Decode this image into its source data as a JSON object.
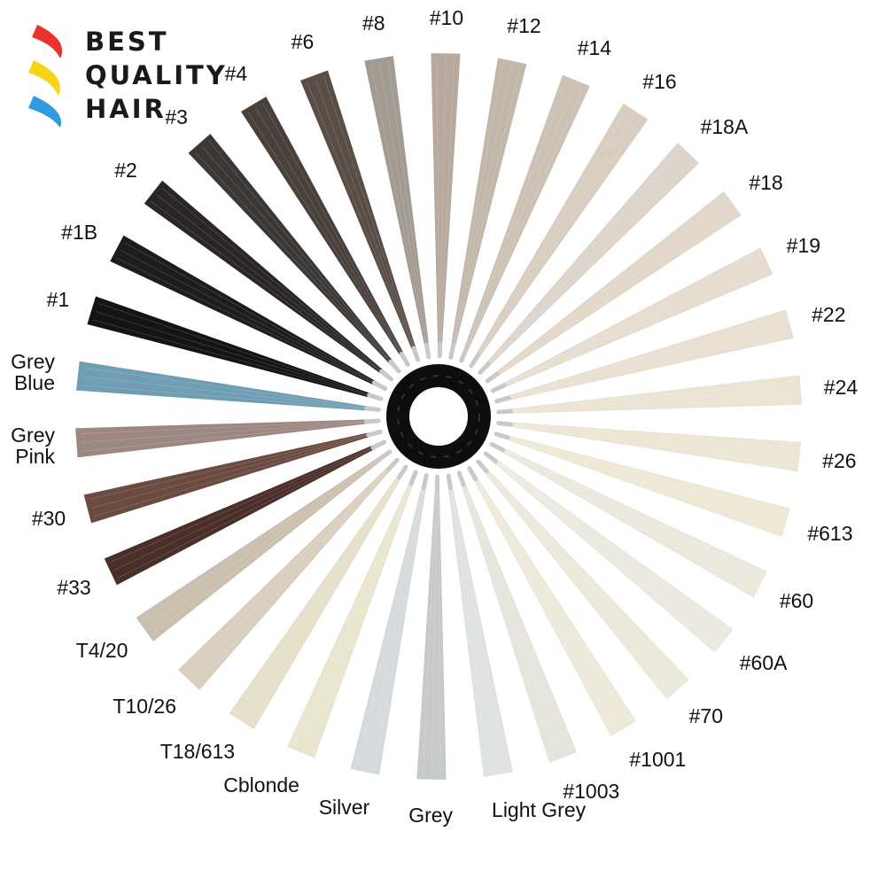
{
  "brand": {
    "line1": "BEST",
    "line2": "QUALITY",
    "line3": "HAIR",
    "stripe_colors": [
      "#e8322b",
      "#f7d417",
      "#2f9be0"
    ]
  },
  "ring": {
    "color": "#0d0d0d",
    "clip_color": "#c9c9c9"
  },
  "swatches": [
    {
      "label": "#1",
      "color": "#141414"
    },
    {
      "label": "#1B",
      "color": "#1d1d1f"
    },
    {
      "label": "#2",
      "color": "#2a2626"
    },
    {
      "label": "#3",
      "color": "#3b3735"
    },
    {
      "label": "#4",
      "color": "#4a403b"
    },
    {
      "label": "#6",
      "color": "#5a4d45"
    },
    {
      "label": "#8",
      "color": "#a39a92"
    },
    {
      "label": "#10",
      "color": "#b7a99d"
    },
    {
      "label": "#12",
      "color": "#c3b7aa"
    },
    {
      "label": "#14",
      "color": "#cdc1b4"
    },
    {
      "label": "#16",
      "color": "#d9cdc0"
    },
    {
      "label": "#18A",
      "color": "#ddd5cc"
    },
    {
      "label": "#18",
      "color": "#e2d7c9"
    },
    {
      "label": "#19",
      "color": "#e6ddd0"
    },
    {
      "label": "#22",
      "color": "#e9e0d1"
    },
    {
      "label": "#24",
      "color": "#ece4d3"
    },
    {
      "label": "#26",
      "color": "#ece6d4"
    },
    {
      "label": "#613",
      "color": "#eee9d4"
    },
    {
      "label": "#60",
      "color": "#ebe9dc"
    },
    {
      "label": "#60A",
      "color": "#eceae0"
    },
    {
      "label": "#70",
      "color": "#ece9db"
    },
    {
      "label": "#1001",
      "color": "#eeeadb"
    },
    {
      "label": "#1003",
      "color": "#e5e5dc"
    },
    {
      "label": "Light Grey",
      "color": "#dfe2e0"
    },
    {
      "label": "Grey",
      "color": "#c6cacb"
    },
    {
      "label": "Silver",
      "color": "#d6dadc"
    },
    {
      "label": "Cblonde",
      "color": "#e9e6cf"
    },
    {
      "label": "T18/613",
      "color": "#e6dfca"
    },
    {
      "label": "T10/26",
      "color": "#d9cfbf"
    },
    {
      "label": "T4/20",
      "color": "#cbbfae"
    },
    {
      "label": "#33",
      "color": "#4a2e28"
    },
    {
      "label": "#30",
      "color": "#6b4a40"
    },
    {
      "label": "Grey Pink",
      "color": "#9d8781"
    },
    {
      "label": "Grey Blue",
      "color": "#6f9db3"
    }
  ]
}
